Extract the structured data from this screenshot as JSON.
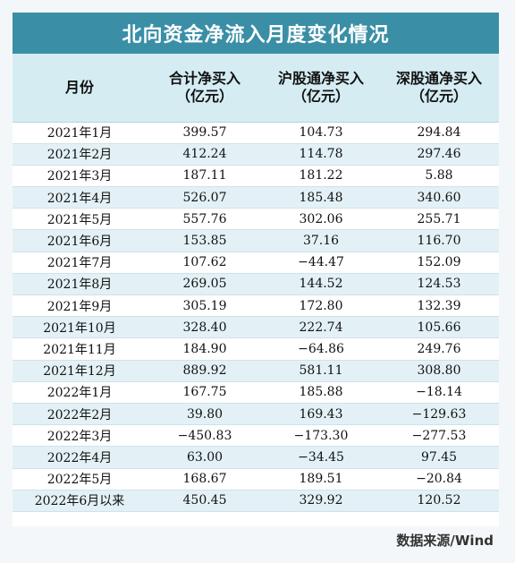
{
  "title": "北向资金净流入月度变化情况",
  "headers": {
    "month": "月份",
    "total_line1": "合计净买入",
    "total_line2": "（亿元）",
    "sh_line1": "沪股通净买入",
    "sh_line2": "（亿元）",
    "sz_line1": "深股通净买入",
    "sz_line2": "（亿元）"
  },
  "rows": [
    {
      "month": "2021年1月",
      "total": "399.57",
      "sh": "104.73",
      "sz": "294.84"
    },
    {
      "month": "2021年2月",
      "total": "412.24",
      "sh": "114.78",
      "sz": "297.46"
    },
    {
      "month": "2021年3月",
      "total": "187.11",
      "sh": "181.22",
      "sz": "5.88"
    },
    {
      "month": "2021年4月",
      "total": "526.07",
      "sh": "185.48",
      "sz": "340.60"
    },
    {
      "month": "2021年5月",
      "total": "557.76",
      "sh": "302.06",
      "sz": "255.71"
    },
    {
      "month": "2021年6月",
      "total": "153.85",
      "sh": "37.16",
      "sz": "116.70"
    },
    {
      "month": "2021年7月",
      "total": "107.62",
      "sh": "−44.47",
      "sz": "152.09"
    },
    {
      "month": "2021年8月",
      "total": "269.05",
      "sh": "144.52",
      "sz": "124.53"
    },
    {
      "month": "2021年9月",
      "total": "305.19",
      "sh": "172.80",
      "sz": "132.39"
    },
    {
      "month": "2021年10月",
      "total": "328.40",
      "sh": "222.74",
      "sz": "105.66"
    },
    {
      "month": "2021年11月",
      "total": "184.90",
      "sh": "−64.86",
      "sz": "249.76"
    },
    {
      "month": "2021年12月",
      "total": "889.92",
      "sh": "581.11",
      "sz": "308.80"
    },
    {
      "month": "2022年1月",
      "total": "167.75",
      "sh": "185.88",
      "sz": "−18.14"
    },
    {
      "month": "2022年2月",
      "total": "39.80",
      "sh": "169.43",
      "sz": "−129.63"
    },
    {
      "month": "2022年3月",
      "total": "−450.83",
      "sh": "−173.30",
      "sz": "−277.53"
    },
    {
      "month": "2022年4月",
      "total": "63.00",
      "sh": "−34.45",
      "sz": "97.45"
    },
    {
      "month": "2022年5月",
      "total": "168.67",
      "sh": "189.51",
      "sz": "−20.84"
    },
    {
      "month": "2022年6月以来",
      "total": "450.45",
      "sh": "329.92",
      "sz": "120.52"
    }
  ],
  "source": "数据来源/Wind",
  "colors": {
    "title_bg": "#3a8fa6",
    "header_bg": "#d5ecf3",
    "stripe_bg": "#e3f1f6"
  }
}
